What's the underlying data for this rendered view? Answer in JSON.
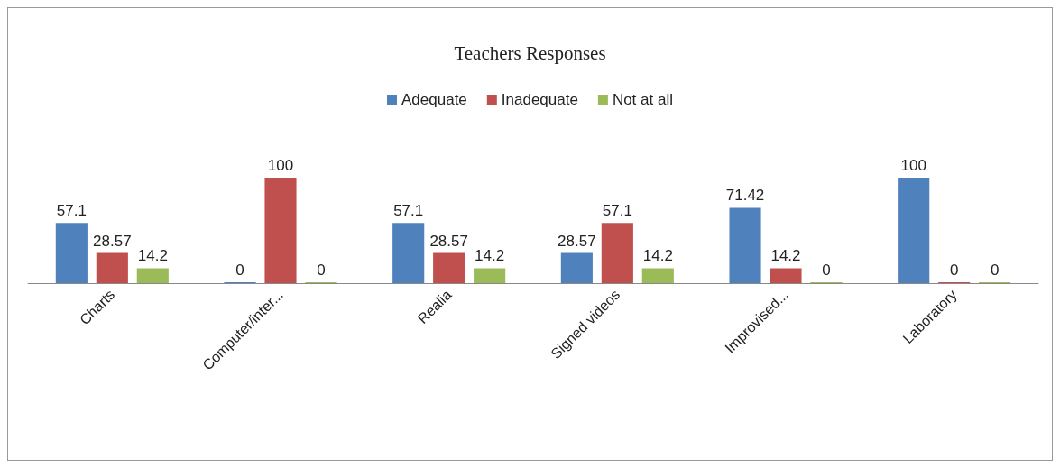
{
  "chart_data": {
    "type": "bar",
    "title": "Teachers Responses",
    "categories": [
      "Charts",
      "Computer/inter...",
      "Realia",
      "Signed videos",
      "Improvised...",
      "Laboratory"
    ],
    "series": [
      {
        "name": "Adequate",
        "color": "#4f81bd",
        "values": [
          57.1,
          0,
          57.1,
          28.57,
          71.42,
          100
        ]
      },
      {
        "name": "Inadequate",
        "color": "#c0504d",
        "values": [
          28.57,
          100,
          28.57,
          57.1,
          14.2,
          0
        ]
      },
      {
        "name": "Not at all",
        "color": "#9bbb59",
        "values": [
          14.2,
          0,
          14.2,
          14.2,
          0,
          0
        ]
      }
    ],
    "data_labels": true,
    "legend": "top"
  }
}
